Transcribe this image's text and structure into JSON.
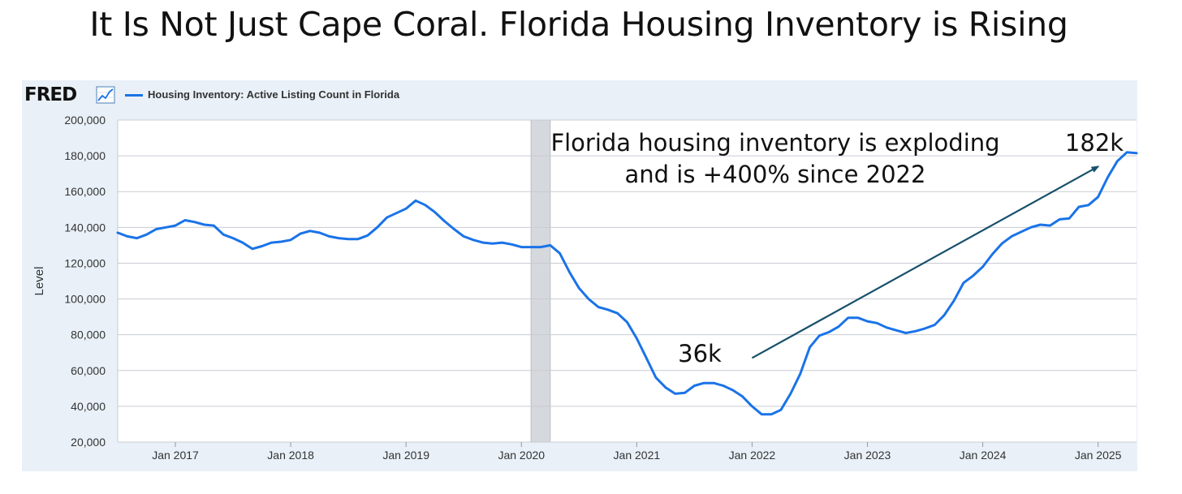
{
  "page_title": "It Is Not Just Cape Coral. Florida Housing Inventory is Rising",
  "brand": {
    "logo_text": "FRED",
    "icon": "trend-chart-icon"
  },
  "chart_data": {
    "type": "line",
    "title": "",
    "xlabel": "",
    "ylabel": "Level",
    "ylim": [
      20000,
      200000
    ],
    "yticks": [
      20000,
      40000,
      60000,
      80000,
      100000,
      120000,
      140000,
      160000,
      180000,
      200000
    ],
    "ytick_labels": [
      "20,000",
      "40,000",
      "60,000",
      "80,000",
      "100,000",
      "120,000",
      "140,000",
      "160,000",
      "180,000",
      "200,000"
    ],
    "xlim": [
      "2016-07",
      "2025-05"
    ],
    "xticks": [
      "2017-01",
      "2018-01",
      "2019-01",
      "2020-01",
      "2021-01",
      "2022-01",
      "2023-01",
      "2024-01",
      "2025-01"
    ],
    "xtick_labels": [
      "Jan 2017",
      "Jan 2018",
      "Jan 2019",
      "Jan 2020",
      "Jan 2021",
      "Jan 2022",
      "Jan 2023",
      "Jan 2024",
      "Jan 2025"
    ],
    "grid": true,
    "legend": "top-left",
    "line_color": "#1a73e8",
    "recession_shade": {
      "start": "2020-02",
      "end": "2020-04"
    },
    "series": [
      {
        "name": "Housing Inventory: Active Listing Count in Florida",
        "x": [
          "2016-07",
          "2016-08",
          "2016-09",
          "2016-10",
          "2016-11",
          "2016-12",
          "2017-01",
          "2017-02",
          "2017-03",
          "2017-04",
          "2017-05",
          "2017-06",
          "2017-07",
          "2017-08",
          "2017-09",
          "2017-10",
          "2017-11",
          "2017-12",
          "2018-01",
          "2018-02",
          "2018-03",
          "2018-04",
          "2018-05",
          "2018-06",
          "2018-07",
          "2018-08",
          "2018-09",
          "2018-10",
          "2018-11",
          "2018-12",
          "2019-01",
          "2019-02",
          "2019-03",
          "2019-04",
          "2019-05",
          "2019-06",
          "2019-07",
          "2019-08",
          "2019-09",
          "2019-10",
          "2019-11",
          "2019-12",
          "2020-01",
          "2020-02",
          "2020-03",
          "2020-04",
          "2020-05",
          "2020-06",
          "2020-07",
          "2020-08",
          "2020-09",
          "2020-10",
          "2020-11",
          "2020-12",
          "2021-01",
          "2021-02",
          "2021-03",
          "2021-04",
          "2021-05",
          "2021-06",
          "2021-07",
          "2021-08",
          "2021-09",
          "2021-10",
          "2021-11",
          "2021-12",
          "2022-01",
          "2022-02",
          "2022-03",
          "2022-04",
          "2022-05",
          "2022-06",
          "2022-07",
          "2022-08",
          "2022-09",
          "2022-10",
          "2022-11",
          "2022-12",
          "2023-01",
          "2023-02",
          "2023-03",
          "2023-04",
          "2023-05",
          "2023-06",
          "2023-07",
          "2023-08",
          "2023-09",
          "2023-10",
          "2023-11",
          "2023-12",
          "2024-01",
          "2024-02",
          "2024-03",
          "2024-04",
          "2024-05",
          "2024-06",
          "2024-07",
          "2024-08",
          "2024-09",
          "2024-10",
          "2024-11",
          "2024-12",
          "2025-01",
          "2025-02",
          "2025-03",
          "2025-04",
          "2025-05"
        ],
        "values": [
          137000,
          135000,
          134000,
          136000,
          139000,
          140000,
          141000,
          144000,
          143000,
          141500,
          141000,
          136000,
          134000,
          131500,
          128000,
          129500,
          131500,
          132000,
          133000,
          136500,
          138000,
          137000,
          135000,
          134000,
          133500,
          133500,
          135500,
          140000,
          145500,
          148000,
          150500,
          155000,
          152500,
          148500,
          143500,
          139000,
          135000,
          133000,
          131500,
          131000,
          131500,
          130500,
          129000,
          129000,
          129000,
          130000,
          125500,
          115000,
          106000,
          100000,
          95500,
          94000,
          92000,
          87000,
          78000,
          67000,
          56000,
          50500,
          47000,
          47500,
          51500,
          53000,
          53000,
          51500,
          49000,
          45500,
          40000,
          35500,
          35500,
          38000,
          47000,
          58000,
          73000,
          79500,
          81500,
          84500,
          89500,
          89500,
          87500,
          86500,
          84000,
          82500,
          81000,
          82000,
          83500,
          85500,
          91000,
          99000,
          109000,
          113000,
          118000,
          125000,
          131000,
          135000,
          137500,
          140000,
          141500,
          141000,
          144500,
          145000,
          151500,
          152500,
          157000,
          168000,
          177000,
          182000,
          181500
        ]
      }
    ],
    "annotations": [
      {
        "text": "Florida housing inventory is exploding",
        "name": "headline-line-1"
      },
      {
        "text": "and is +400% since 2022",
        "name": "headline-line-2"
      },
      {
        "text": "36k",
        "name": "low-point-label"
      },
      {
        "text": "182k",
        "name": "high-point-label"
      }
    ],
    "arrow": {
      "from": [
        "2022-01",
        67000
      ],
      "to": [
        "2025-01",
        174000
      ],
      "color": "#17506b"
    }
  }
}
